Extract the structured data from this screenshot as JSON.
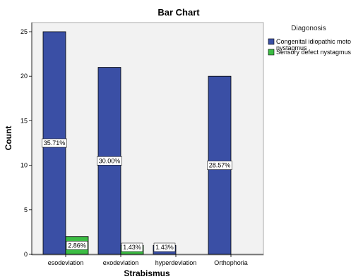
{
  "chart_data": {
    "type": "bar",
    "title": "Bar Chart",
    "xlabel": "Strabismus",
    "ylabel": "Count",
    "categories": [
      "esodeviation",
      "exodeviation",
      "hyperdeviation",
      "Orthophoria"
    ],
    "ylim": [
      0,
      26
    ],
    "yticks": [
      0,
      5,
      10,
      15,
      20,
      25
    ],
    "legend_title": "Diagonosis",
    "legend_position": "top-right",
    "series": [
      {
        "name": "Congenital idiopathic motor nystagmus",
        "color": "#3a4fa5",
        "values": [
          25,
          21,
          1,
          20
        ],
        "labels": [
          "35.71%",
          "30.00%",
          "1.43%",
          "28.57%"
        ]
      },
      {
        "name": "Sensory defect nystagmus",
        "color": "#3cbd44",
        "values": [
          2,
          1,
          0,
          null
        ],
        "labels": [
          "2.86%",
          "1.43%",
          "",
          ""
        ]
      }
    ]
  }
}
